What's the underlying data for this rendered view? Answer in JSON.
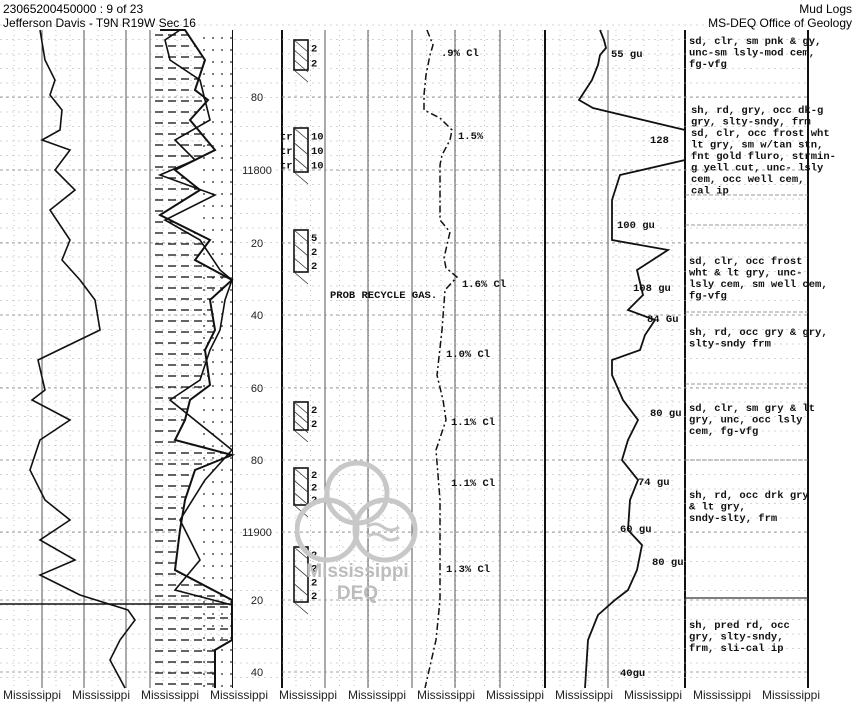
{
  "header": {
    "doc_id": "23065200450000 : 9 of 23",
    "location": "Jefferson Davis - T9N R19W Sec 16",
    "doc_type": "Mud Logs",
    "agency": "MS-DEQ Office of Geology"
  },
  "depth_labels": [
    "80",
    "11800",
    "20",
    "40",
    "60",
    "80",
    "11900",
    "20",
    "40"
  ],
  "show_boxes": [
    {
      "values": [
        "2",
        "2"
      ]
    },
    {
      "prefix": [
        "tr",
        "tr",
        "tr"
      ],
      "values": [
        "10",
        "10",
        "10"
      ]
    },
    {
      "values": [
        "5",
        "2",
        "2"
      ]
    },
    {
      "values": [
        "2",
        "2"
      ]
    },
    {
      "values": [
        "2",
        "2",
        "2"
      ]
    },
    {
      "values": [
        "2",
        "2",
        "2",
        "2"
      ]
    }
  ],
  "gas_annotations": [
    ".9% Cl",
    "1.5%",
    "1.6% Cl",
    "1.0% Cl",
    "1.1% Cl",
    "1.1% Cl",
    "1.3% Cl"
  ],
  "remark": "PROB RECYCLE GAS.",
  "total_gas_labels": [
    "55 gu",
    "128",
    "100 gu",
    "108 gu",
    "84 Gu",
    "80 gu",
    "74 gu",
    "60 gu",
    "80 gu",
    "40gu"
  ],
  "lithology_descriptions": [
    [
      "sd, clr, sm pnk & gy,",
      "unc-sm lsly-mod cem,",
      "fg-vfg"
    ],
    [
      "sh, rd, gry, occ dk-g",
      "gry, slty-sndy, frm",
      "sd, clr, occ frost wht",
      "lt gry, sm w/tan stn,",
      "fnt gold fluro, strmin-",
      "g yell cut, unc- lsly",
      "cem, occ well cem,",
      "cal ip"
    ],
    [
      "sd, clr, occ frost",
      "wht & lt gry, unc-",
      "lsly cem, sm well cem,",
      "fg-vfg"
    ],
    [
      "sh, rd, occ gry & gry,",
      "slty-sndy frm"
    ],
    [
      "sd, clr, sm gry & lt",
      "gry, unc, occ lsly",
      "cem, fg-vfg"
    ],
    [
      "sh, rd, occ drk gry",
      "& lt gry,",
      "sndy-slty, frm"
    ],
    [
      "sh, pred rd, occ",
      "gry, slty-sndy,",
      "frm, sli-cal ip"
    ]
  ],
  "watermark": {
    "logo_text": [
      "Mississippi",
      "DEQ"
    ],
    "footer_text": [
      "Mississippi",
      "Mississippi",
      "Mississippi",
      "Mississippi",
      "Mississippi",
      "Mississippi",
      "Mississippi",
      "Mississippi",
      "Mississippi",
      "Mississippi",
      "Mississippi",
      "Mississippi"
    ]
  }
}
